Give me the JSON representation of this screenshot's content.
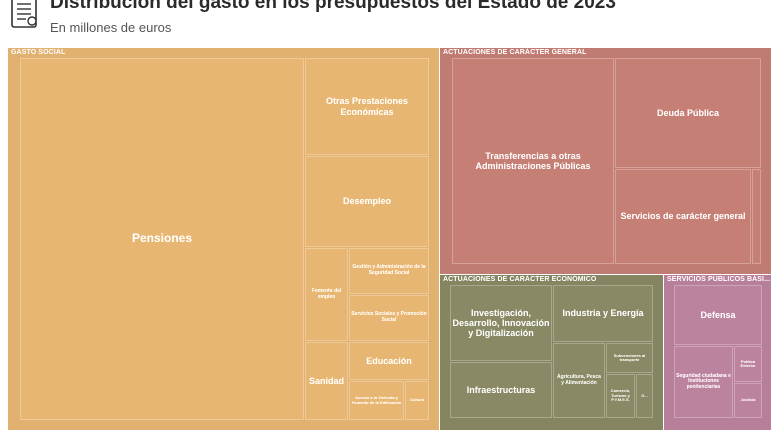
{
  "header": {
    "title": "Distribución del gasto en los presupuestos del Estado de 2023",
    "subtitle": "En millones de euros",
    "icon": "document-icon"
  },
  "colors": {
    "gasto_social": "#e1b170",
    "caracter_general": "#c07b72",
    "caracter_economico": "#858562",
    "servicios_publicos": "#b77f9a"
  },
  "chart_data": {
    "type": "treemap",
    "title": "Distribución del gasto en los presupuestos del Estado de 2023",
    "subtitle": "En millones de euros",
    "groups": [
      {
        "name": "GASTO SOCIAL",
        "items": [
          {
            "label": "Pensiones"
          },
          {
            "label": "Otras Prestaciones Económicas"
          },
          {
            "label": "Desempleo"
          },
          {
            "label": "Fomento del empleo"
          },
          {
            "label": "Gestión y Administración de la Seguridad Social"
          },
          {
            "label": "Servicios Sociales y Promoción Social"
          },
          {
            "label": "Sanidad"
          },
          {
            "label": "Educación"
          },
          {
            "label": "Acceso a la Vivienda y Fomento de la Edificación"
          },
          {
            "label": "Cultura"
          }
        ]
      },
      {
        "name": "ACTUACIONES DE CARÁCTER GENERAL",
        "items": [
          {
            "label": "Transferencias a otras Administraciones Públicas"
          },
          {
            "label": "Deuda Pública"
          },
          {
            "label": "Servicios de carácter general"
          },
          {
            "label": ""
          }
        ]
      },
      {
        "name": "ACTUACIONES DE CARÁCTER ECONÓMICO",
        "items": [
          {
            "label": "Investigación, Desarrollo, Innovación y Digitalización"
          },
          {
            "label": "Industria y Energía"
          },
          {
            "label": "Infraestructuras"
          },
          {
            "label": "Agricultura, Pesca y Alimentación"
          },
          {
            "label": "Subvenciones al transporte"
          },
          {
            "label": "Comercio, Turismo y P.Y.M.E.S."
          },
          {
            "label": "O..."
          }
        ]
      },
      {
        "name": "SERVICIOS PÚBLICOS BÁSI...",
        "items": [
          {
            "label": "Defensa"
          },
          {
            "label": "Seguridad ciudadana e Instituciones penitenciarias"
          },
          {
            "label": "Política Exterior"
          },
          {
            "label": "Justicia"
          }
        ]
      }
    ]
  }
}
